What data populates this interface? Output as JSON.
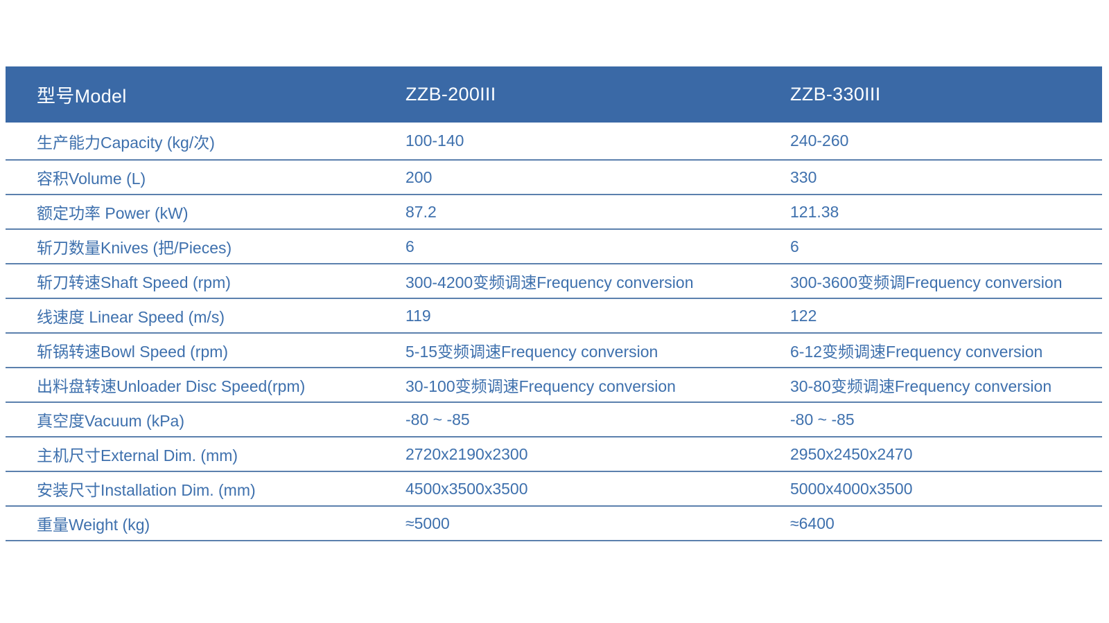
{
  "table": {
    "header": {
      "label": "型号Model",
      "model_a": "ZZB-200III",
      "model_b": "ZZB-330III"
    },
    "rows": [
      {
        "label": "生产能力Capacity (kg/次)",
        "v1": "100-140",
        "v2": "240-260"
      },
      {
        "label": "容积Volume (L)",
        "v1": "200",
        "v2": "330"
      },
      {
        "label": "额定功率 Power (kW)",
        "v1": "87.2",
        "v2": "121.38"
      },
      {
        "label": "斩刀数量Knives (把/Pieces)",
        "v1": "6",
        "v2": "6"
      },
      {
        "label": "斩刀转速Shaft Speed (rpm)",
        "v1": "300-4200变频调速Frequency conversion",
        "v2": "300-3600变频调Frequency conversion"
      },
      {
        "label": "线速度 Linear Speed (m/s)",
        "v1": "119",
        "v2": "122"
      },
      {
        "label": "斩锅转速Bowl Speed (rpm)",
        "v1": "5-15变频调速Frequency conversion",
        "v2": "6-12变频调速Frequency conversion"
      },
      {
        "label": "出料盘转速Unloader Disc Speed(rpm)",
        "v1": "30-100变频调速Frequency conversion",
        "v2": "30-80变频调速Frequency conversion"
      },
      {
        "label": "真空度Vacuum (kPa)",
        "v1": "-80 ~ -85",
        "v2": "-80 ~ -85"
      },
      {
        "label": "主机尺寸External Dim. (mm)",
        "v1": "2720x2190x2300",
        "v2": "2950x2450x2470"
      },
      {
        "label": "安装尺寸Installation Dim. (mm)",
        "v1": "4500x3500x3500",
        "v2": "5000x4000x3500"
      },
      {
        "label": "重量Weight (kg)",
        "v1": "≈5000",
        "v2": "≈6400"
      }
    ]
  },
  "colors": {
    "header_bg": "#3a69a6",
    "body_text": "#3e70ad",
    "line": "#5b80ad"
  }
}
